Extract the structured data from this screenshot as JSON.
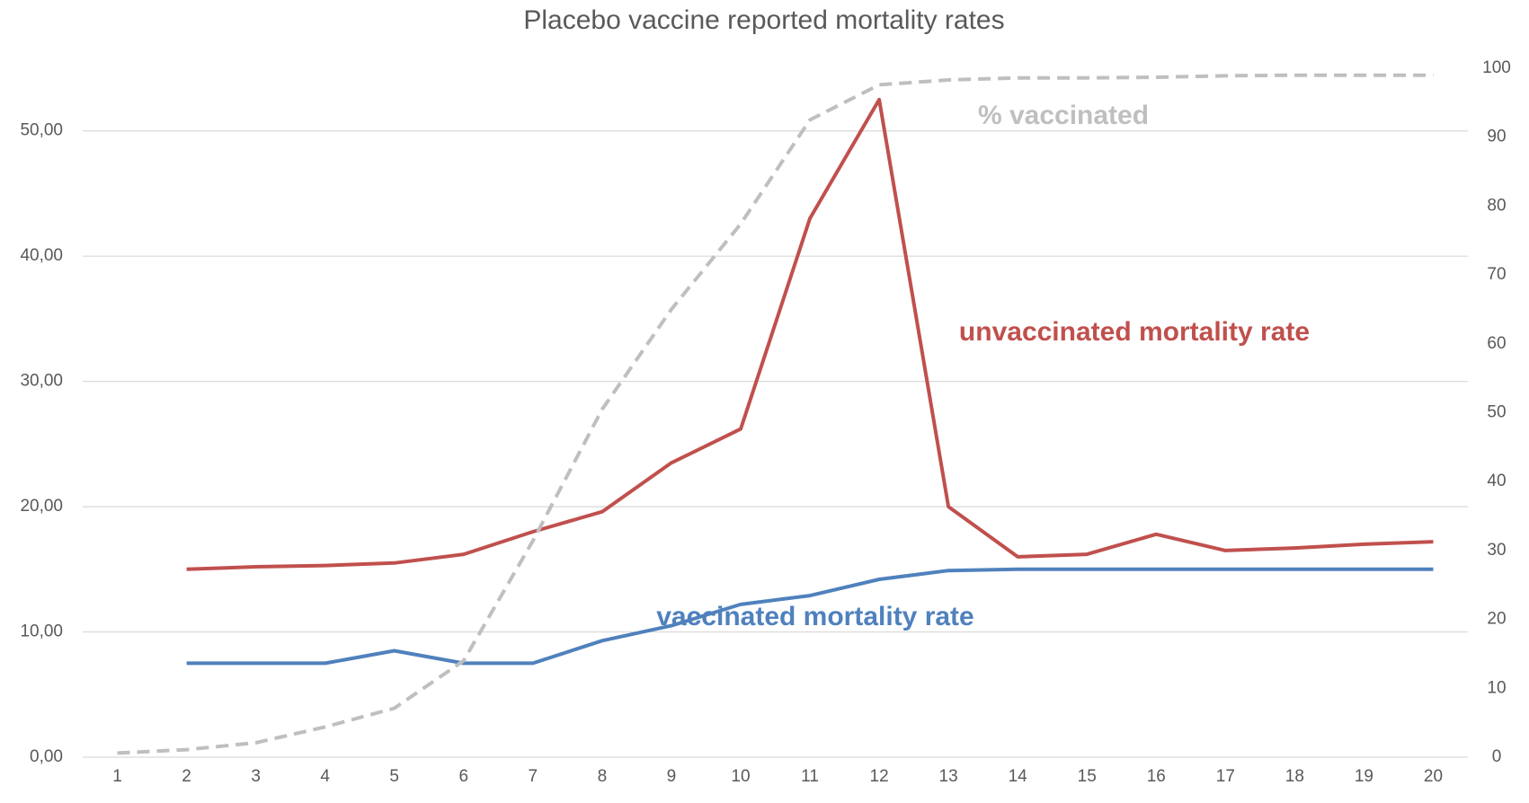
{
  "chart_data": {
    "type": "line",
    "title": "Placebo vaccine reported mortality rates",
    "categories": [
      "1",
      "2",
      "3",
      "4",
      "5",
      "6",
      "7",
      "8",
      "9",
      "10",
      "11",
      "12",
      "13",
      "14",
      "15",
      "16",
      "17",
      "18",
      "19",
      "20"
    ],
    "series": [
      {
        "name": "unvaccinated mortality rate",
        "color": "#c0504d",
        "dash": false,
        "values": [
          null,
          15.0,
          15.2,
          15.3,
          15.5,
          16.2,
          18.0,
          19.6,
          23.5,
          26.2,
          43.0,
          52.5,
          20.0,
          16.0,
          16.2,
          17.8,
          16.5,
          16.7,
          17.0,
          17.2
        ]
      },
      {
        "name": "vaccinated mortality rate",
        "color": "#4f81bd",
        "dash": false,
        "values": [
          null,
          7.5,
          7.5,
          7.5,
          8.5,
          7.5,
          7.5,
          9.3,
          10.5,
          12.2,
          12.9,
          14.2,
          14.9,
          15.0,
          15.0,
          15.0,
          15.0,
          15.0,
          15.0,
          15.0
        ]
      },
      {
        "name": "% vaccinated",
        "color": "#bfbfbf",
        "dash": true,
        "axis": "y2",
        "values": [
          0.6,
          1.1,
          2.1,
          4.4,
          7.1,
          14,
          31.4,
          50.5,
          65,
          77.4,
          92.5,
          97.6,
          98.3,
          98.6,
          98.6,
          98.7,
          98.9,
          99,
          99,
          99
        ]
      }
    ],
    "ylim": [
      0,
      55
    ],
    "yticks": [
      {
        "value": 0,
        "label": "0,00"
      },
      {
        "value": 10,
        "label": "10,00"
      },
      {
        "value": 20,
        "label": "20,00"
      },
      {
        "value": 30,
        "label": "30,00"
      },
      {
        "value": 40,
        "label": "40,00"
      },
      {
        "value": 50,
        "label": "50,00"
      }
    ],
    "y2lim": [
      0,
      100
    ],
    "y2ticks": [
      0,
      10,
      20,
      30,
      40,
      50,
      60,
      70,
      80,
      90,
      100
    ],
    "grid": true
  }
}
